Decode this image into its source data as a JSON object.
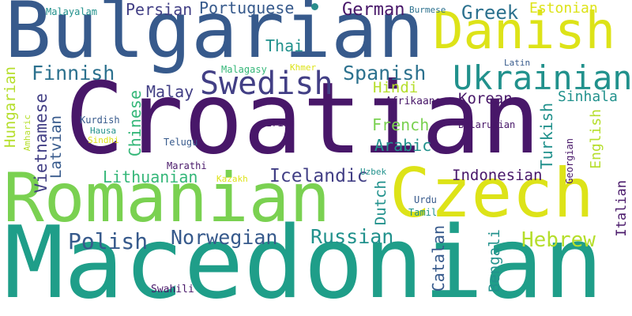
{
  "palette": {
    "dark_purple": "#481769",
    "slate_blue": "#375a8c",
    "indigo": "#423f85",
    "teal": "#21918c",
    "green_teal": "#1f9e89",
    "mid_green": "#35b779",
    "light_green": "#7ad151",
    "yellow_green": "#b5de2b",
    "yellow": "#dde318"
  },
  "words": {
    "bulgarian": "Bulgarian",
    "croatian": "Croatian",
    "macedonian": "Macedonian",
    "romanian": "Romanian",
    "czech": "Czech",
    "danish": "Danish",
    "ukrainian": "Ukrainian",
    "swedish": "Swedish",
    "norwegian": "Norwegian",
    "russian": "Russian",
    "polish": "Polish",
    "hebrew": "Hebrew",
    "lithuanian": "Lithuanian",
    "icelandic": "Icelandic",
    "indonesian": "Indonesian",
    "finnish": "Finnish",
    "spanish": "Spanish",
    "greek": "Greek",
    "german": "German",
    "persian": "Persian",
    "portuguese": "Portuguese",
    "thai": "Thai",
    "malay": "Malay",
    "korean": "Korean",
    "sinhala": "Sinhala",
    "french": "French",
    "arabic": "Arabic",
    "hindi": "Hindi",
    "estonian": "Estonian",
    "afrikaans": "Afrikaans",
    "belarusian": "Belarusian",
    "irish": "Irish",
    "telugu": "Telugu",
    "marathi": "Marathi",
    "kurdish": "Kurdish",
    "hausa": "Hausa",
    "sindhi": "Sindhi",
    "malayalam": "Malayalam",
    "burmese": "Burmese",
    "malagasy": "Malagasy",
    "khmer": "Khmer",
    "latin": "Latin",
    "kazakh": "Kazakh",
    "uzbek": "Uzbek",
    "urdu": "Urdu",
    "tamil": "Tamil",
    "swahili": "Swahili",
    "hungarian": "Hungarian",
    "amharic": "Amharic",
    "vietnamese": "Vietnamese",
    "latvian": "Latvian",
    "chinese": "Chinese",
    "turkish": "Turkish",
    "english": "English",
    "georgian": "Georgian",
    "dutch": "Dutch",
    "catalan": "Catalan",
    "bengali": "Bengali",
    "italian": "Italian"
  }
}
